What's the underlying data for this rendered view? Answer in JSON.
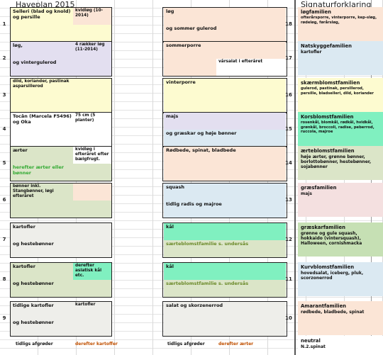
{
  "header": {
    "left_title": "Haveplan 2015",
    "right_title": "Signaturforklaring"
  },
  "colors": {
    "peach": "#fbe5d6",
    "cream": "#fdfbd0",
    "sage": "#dbe5c8",
    "lavender": "#e3dff0",
    "pink": "#f4e0e0",
    "lightblue": "#dbe9f2",
    "mint": "#80f0c0",
    "green": "#c6e0b4",
    "grid": "#d9d9d9"
  },
  "left_rows": [
    {
      "num": "1",
      "a_top": "Selleri (blad og knold) og persille",
      "b_top": "kvidløg (10-2014)",
      "a_bottom": "",
      "b_bottom": ""
    },
    {
      "num": "2",
      "a_top": "løg,",
      "b_top": "4 rækker løg (11-2014)",
      "a_bottom": "og vintergulerod",
      "b_bottom": ""
    },
    {
      "num": "3",
      "a_top": "dild, koriander, pastinak asparsillerod",
      "b_top": "",
      "a_bottom": "",
      "b_bottom": ""
    },
    {
      "num": "4",
      "a_top": "Tocân (Marcela F5496) og Oka",
      "b_top": "75 cm (5 planter)",
      "a_bottom": "",
      "b_bottom": ""
    },
    {
      "num": "5",
      "a_top": "ærter",
      "b_top": "kvidløg i efteråret efter bælgfrugt.",
      "a_bottom": "herefter ærter eller bønner",
      "b_bottom": ""
    },
    {
      "num": "6",
      "a_top": "bønner inkl. Stangbønner, løgi efteråret",
      "b_top": "",
      "a_bottom": "",
      "b_bottom": ""
    },
    {
      "num": "7",
      "a_top": "kartofler",
      "b_top": "",
      "a_bottom": "og hestebønner",
      "b_bottom": ""
    },
    {
      "num": "8",
      "a_top": "kartofler",
      "b_top": "derefter asiatisk kål etc.",
      "a_bottom": "og hestebønner",
      "b_bottom": ""
    },
    {
      "num": "9",
      "a_top": "tidlige kartofler",
      "b_top": "kartofler",
      "a_bottom": "og hestebønner",
      "b_bottom": ""
    }
  ],
  "right_rows": [
    {
      "num": "18",
      "top": "løg",
      "bottom": "og sommer gulerod",
      "extra": ""
    },
    {
      "num": "17",
      "top": "sommerporre",
      "bottom": "",
      "extra": "vårsalat i efteråret"
    },
    {
      "num": "16",
      "top": "vinterporre",
      "bottom": "",
      "extra": ""
    },
    {
      "num": "15",
      "top": "majs",
      "bottom": "og græskar og høje bønner",
      "extra": ""
    },
    {
      "num": "14",
      "top": "Rødbede, spinat, bladbede",
      "bottom": "",
      "extra": ""
    },
    {
      "num": "13",
      "top": "squash",
      "bottom": "tidlig radis og majroe",
      "extra": ""
    },
    {
      "num": "12",
      "top": "kål",
      "bottom": "særteblomstfamilie s. undersås",
      "extra": ""
    },
    {
      "num": "11",
      "top": "kål",
      "bottom": "særteblomstfamilie s. undersås",
      "extra": ""
    },
    {
      "num": "10",
      "top": "salat og skorzenerrod",
      "bottom": "",
      "extra": ""
    }
  ],
  "legend": [
    {
      "title": "løgfamilien",
      "desc": "ofterårsporre, vinterporre, kep-sløg, rødeløg, førårsløg,",
      "color": "#fbe5d6"
    },
    {
      "title": "Natskyggefamilien",
      "desc": "kartofler",
      "color": "#dbe9f2"
    },
    {
      "title": "skærmblomstfamilien",
      "desc": "gulerod, pastinak, persillerod, persille, bladselleri, dild, koriander",
      "color": "#fdfbd0"
    },
    {
      "title": "Korsblomstfamilien",
      "desc": "rosenkål, blomkål, rødkål, hvidkål, grønkål, broccoli, radise, peberrod, ruccola, majroe",
      "color": "#80f0c0"
    },
    {
      "title": "ærteblomstfamilien",
      "desc": "høje ærter, grønne bønner, borlottobønner, hestebønner, sojabønner",
      "color": "#dbe5c8"
    },
    {
      "title": "græsfamilien",
      "desc": "majs",
      "color": "#f4e0e0"
    },
    {
      "title": "græskarfamilien",
      "desc": "grønne og gule squash, hokkaido (vintersquash), Halloween, cornishmacka",
      "color": "#c6e0b4"
    },
    {
      "title": "Kurvblomstfamilien",
      "desc": "hovedsalat, iceberg, pluk, scorzonerrod",
      "color": "#dbe9f2"
    },
    {
      "title": "Amarantfamilien",
      "desc": "rødbede, bladbede, spinat",
      "color": "#fbe5d6"
    },
    {
      "title": "neutral",
      "desc": "N.2.spinat",
      "color": "#ffffff"
    }
  ],
  "bottom_row": {
    "a": "tidligs afgrøder",
    "b": "derefter kartoffer",
    "c": "tidligs afgrøder",
    "d": "derefter ærter"
  }
}
